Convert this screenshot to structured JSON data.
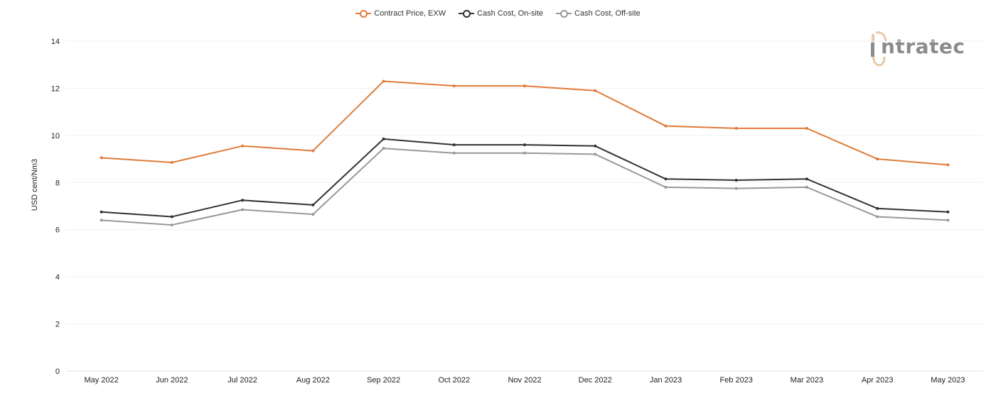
{
  "logo": {
    "text": "ntratec",
    "accent": "#e8c9a8"
  },
  "chart_data": {
    "type": "line",
    "title": "",
    "xlabel": "",
    "ylabel": "USD cent/Nm3",
    "ylim": [
      0,
      14
    ],
    "yticks": [
      "0",
      "2",
      "4",
      "6",
      "8",
      "10",
      "12",
      "14"
    ],
    "grid": true,
    "legend_position": "top-center",
    "categories": [
      "May 2022",
      "Jun 2022",
      "Jul 2022",
      "Aug 2022",
      "Sep 2022",
      "Oct 2022",
      "Nov 2022",
      "Dec 2022",
      "Jan 2023",
      "Feb 2023",
      "Mar 2023",
      "Apr 2023",
      "May 2023"
    ],
    "series": [
      {
        "name": "Contract Price, EXW",
        "color": "#e07b39",
        "values": [
          9.05,
          8.85,
          9.55,
          9.35,
          12.3,
          12.1,
          12.1,
          11.9,
          10.4,
          10.3,
          10.3,
          9.0,
          8.75
        ]
      },
      {
        "name": "Cash Cost, On-site",
        "color": "#333333",
        "values": [
          6.75,
          6.55,
          7.25,
          7.05,
          9.85,
          9.6,
          9.6,
          9.55,
          8.15,
          8.1,
          8.15,
          6.9,
          6.75
        ]
      },
      {
        "name": "Cash Cost, Off-site",
        "color": "#999999",
        "values": [
          6.4,
          6.2,
          6.85,
          6.65,
          9.45,
          9.25,
          9.25,
          9.2,
          7.8,
          7.75,
          7.8,
          6.55,
          6.4
        ]
      }
    ]
  }
}
